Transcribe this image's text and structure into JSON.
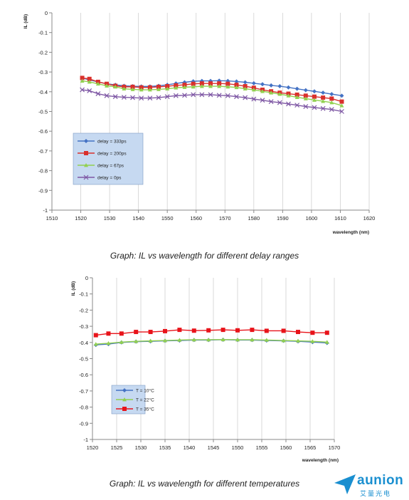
{
  "captions": {
    "chart1": "Graph: IL vs wavelength for different delay ranges",
    "chart2": "Graph: IL vs wavelength for different temperatures"
  },
  "logo": {
    "word": "aunion",
    "sub": "艾量光电"
  },
  "colors": {
    "blue": "#4472C4",
    "red": "#D9302C",
    "green": "#92D050",
    "purple": "#7E57A4",
    "legend_bg": "#C6D9F1"
  },
  "chart_data": [
    {
      "type": "line",
      "ylabel": "IL (dB)",
      "xlabel": "wavelength (nm)",
      "xlim": [
        1510,
        1620
      ],
      "ylim": [
        -1,
        0
      ],
      "xticks": [
        1510,
        1520,
        1530,
        1540,
        1550,
        1560,
        1570,
        1580,
        1590,
        1600,
        1610,
        1620
      ],
      "yticks": [
        0,
        -0.1,
        -0.2,
        -0.3,
        -0.4,
        -0.5,
        -0.6,
        -0.7,
        -0.8,
        -0.9,
        -1
      ],
      "grid": "vertical",
      "legend": "bottom-left",
      "x": [
        1520.5,
        1523,
        1526,
        1529,
        1532,
        1535,
        1538,
        1541,
        1544,
        1547,
        1550,
        1553,
        1556,
        1559,
        1562,
        1565,
        1568,
        1571,
        1574,
        1577,
        1580,
        1583,
        1586,
        1589,
        1592,
        1595,
        1598,
        1601,
        1604,
        1607,
        1610.5
      ],
      "series": [
        {
          "name": "delay = 333ps",
          "color": "#4472C4",
          "marker": "diamond",
          "values": [
            -0.33,
            -0.34,
            -0.35,
            -0.36,
            -0.365,
            -0.37,
            -0.372,
            -0.373,
            -0.373,
            -0.37,
            -0.365,
            -0.358,
            -0.352,
            -0.347,
            -0.345,
            -0.345,
            -0.344,
            -0.345,
            -0.348,
            -0.352,
            -0.357,
            -0.362,
            -0.368,
            -0.372,
            -0.378,
            -0.385,
            -0.392,
            -0.398,
            -0.405,
            -0.412,
            -0.42
          ]
        },
        {
          "name": "delay = 200ps",
          "color": "#D9302C",
          "marker": "square",
          "values": [
            -0.33,
            -0.335,
            -0.35,
            -0.36,
            -0.37,
            -0.375,
            -0.375,
            -0.378,
            -0.378,
            -0.375,
            -0.372,
            -0.368,
            -0.365,
            -0.36,
            -0.358,
            -0.358,
            -0.358,
            -0.36,
            -0.365,
            -0.372,
            -0.38,
            -0.39,
            -0.398,
            -0.405,
            -0.41,
            -0.415,
            -0.42,
            -0.425,
            -0.43,
            -0.435,
            -0.45
          ]
        },
        {
          "name": "delay = 67ps",
          "color": "#92D050",
          "marker": "triangle",
          "values": [
            -0.345,
            -0.35,
            -0.36,
            -0.37,
            -0.375,
            -0.385,
            -0.388,
            -0.39,
            -0.39,
            -0.388,
            -0.385,
            -0.38,
            -0.377,
            -0.375,
            -0.372,
            -0.372,
            -0.372,
            -0.375,
            -0.378,
            -0.385,
            -0.39,
            -0.398,
            -0.405,
            -0.412,
            -0.42,
            -0.428,
            -0.435,
            -0.442,
            -0.448,
            -0.455,
            -0.47
          ]
        },
        {
          "name": "delay = 0ps",
          "color": "#7E57A4",
          "marker": "x",
          "values": [
            -0.39,
            -0.395,
            -0.41,
            -0.42,
            -0.425,
            -0.428,
            -0.43,
            -0.432,
            -0.432,
            -0.43,
            -0.425,
            -0.42,
            -0.418,
            -0.415,
            -0.415,
            -0.415,
            -0.418,
            -0.42,
            -0.425,
            -0.43,
            -0.437,
            -0.443,
            -0.45,
            -0.455,
            -0.462,
            -0.468,
            -0.475,
            -0.48,
            -0.485,
            -0.49,
            -0.5
          ]
        }
      ]
    },
    {
      "type": "line",
      "ylabel": "IL (dB)",
      "xlabel": "wavelength (nm)",
      "xlim": [
        1520,
        1570
      ],
      "ylim": [
        -1,
        0
      ],
      "xticks": [
        1520,
        1525,
        1530,
        1535,
        1540,
        1545,
        1550,
        1555,
        1560,
        1565,
        1570
      ],
      "yticks": [
        0,
        -0.1,
        -0.2,
        -0.3,
        -0.4,
        -0.5,
        -0.6,
        -0.7,
        -0.8,
        -0.9,
        -1
      ],
      "grid": "vertical",
      "legend": "bottom-left",
      "x": [
        1520.7,
        1523.3,
        1526,
        1529,
        1532,
        1535,
        1538,
        1541,
        1544,
        1547,
        1550,
        1553,
        1556,
        1559.5,
        1562.5,
        1565.5,
        1568.5
      ],
      "series": [
        {
          "name": "T = 10°C",
          "color": "#4472C4",
          "marker": "diamond",
          "values": [
            -0.415,
            -0.41,
            -0.4,
            -0.395,
            -0.393,
            -0.39,
            -0.388,
            -0.385,
            -0.385,
            -0.383,
            -0.385,
            -0.385,
            -0.388,
            -0.39,
            -0.393,
            -0.398,
            -0.403
          ]
        },
        {
          "name": "T = 22°C",
          "color": "#92D050",
          "marker": "triangle",
          "values": [
            -0.41,
            -0.405,
            -0.398,
            -0.393,
            -0.39,
            -0.388,
            -0.385,
            -0.383,
            -0.383,
            -0.382,
            -0.383,
            -0.383,
            -0.385,
            -0.388,
            -0.39,
            -0.393,
            -0.398
          ]
        },
        {
          "name": "T = 35°C",
          "color": "#E8131A",
          "marker": "square",
          "values": [
            -0.355,
            -0.345,
            -0.345,
            -0.335,
            -0.335,
            -0.33,
            -0.322,
            -0.327,
            -0.325,
            -0.322,
            -0.325,
            -0.322,
            -0.328,
            -0.328,
            -0.335,
            -0.34,
            -0.34
          ]
        }
      ]
    }
  ]
}
